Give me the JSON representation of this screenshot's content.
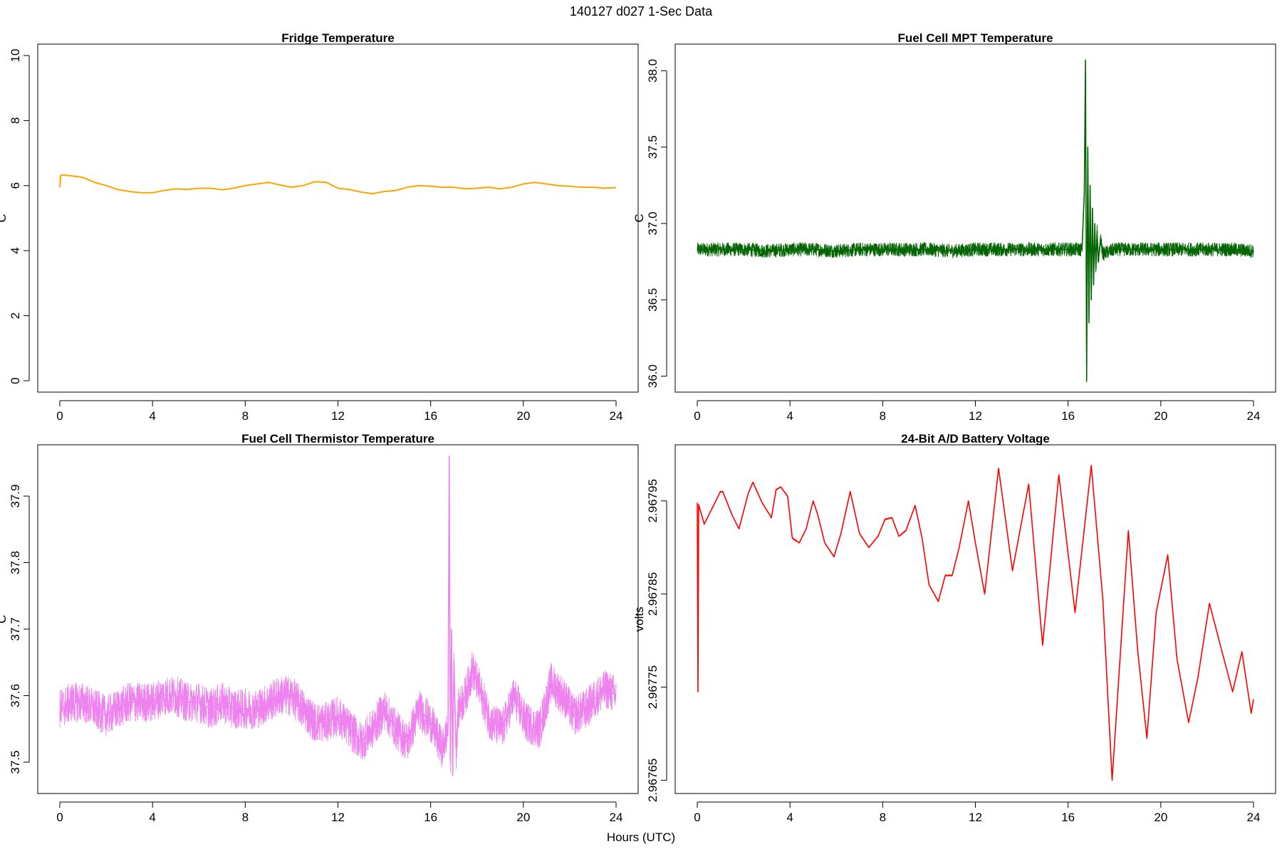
{
  "page_title": "140127   d027   1-Sec Data",
  "shared_xlabel": "Hours (UTC)",
  "chart_data": [
    {
      "type": "line",
      "title": "Fridge Temperature",
      "xlabel": "",
      "ylabel": "C",
      "color": "#FFA500",
      "xlim": [
        0,
        24
      ],
      "ylim": [
        0,
        10
      ],
      "xticks": [
        0,
        4,
        8,
        12,
        16,
        20,
        24
      ],
      "yticks": [
        0,
        2,
        4,
        6,
        8,
        10
      ],
      "ytick_labels": [
        "0",
        "2",
        "4",
        "6",
        "8",
        "10"
      ],
      "noise": 0.0,
      "series": [
        {
          "name": "Fridge Temperature",
          "x": [
            0,
            0.02,
            0.1,
            0.5,
            1,
            1.5,
            2,
            2.5,
            3,
            3.5,
            4,
            4.5,
            5,
            5.5,
            6,
            6.5,
            7,
            7.5,
            8,
            8.5,
            9,
            9.5,
            10,
            10.5,
            11,
            11.5,
            12,
            12.5,
            13,
            13.5,
            14,
            14.5,
            15,
            15.5,
            16,
            16.5,
            17,
            17.5,
            18,
            18.5,
            19,
            19.5,
            20,
            20.5,
            21,
            21.5,
            22,
            22.5,
            23,
            23.5,
            24
          ],
          "y": [
            5.95,
            6.3,
            6.33,
            6.3,
            6.25,
            6.1,
            6.0,
            5.88,
            5.82,
            5.78,
            5.78,
            5.85,
            5.9,
            5.88,
            5.92,
            5.92,
            5.87,
            5.92,
            6.0,
            6.05,
            6.1,
            6.02,
            5.95,
            6.0,
            6.12,
            6.1,
            5.92,
            5.88,
            5.8,
            5.75,
            5.82,
            5.85,
            5.95,
            6.0,
            5.98,
            5.95,
            5.95,
            5.9,
            5.92,
            5.95,
            5.9,
            5.95,
            6.05,
            6.1,
            6.05,
            6.0,
            5.98,
            5.95,
            5.95,
            5.92,
            5.94
          ]
        }
      ]
    },
    {
      "type": "line",
      "title": "Fuel Cell MPT Temperature",
      "xlabel": "",
      "ylabel": "C",
      "color": "#006400",
      "xlim": [
        0,
        24
      ],
      "ylim": [
        35.97,
        38.1
      ],
      "xticks": [
        0,
        4,
        8,
        12,
        16,
        20,
        24
      ],
      "yticks": [
        36.0,
        36.5,
        37.0,
        37.5,
        38.0
      ],
      "ytick_labels": [
        "36.0",
        "36.5",
        "37.0",
        "37.5",
        "38.0"
      ],
      "noise": 0.045,
      "series": [
        {
          "name": "Fuel Cell MPT Temperature",
          "x": [
            0,
            1,
            2,
            3,
            4,
            5,
            6,
            7,
            8,
            9,
            10,
            11,
            12,
            13,
            14,
            15,
            16,
            16.6,
            16.7,
            16.75,
            16.8,
            16.85,
            16.9,
            16.95,
            17.0,
            17.05,
            17.1,
            17.15,
            17.2,
            17.25,
            17.3,
            17.4,
            17.5,
            18,
            19,
            20,
            21,
            22,
            23,
            24
          ],
          "y": [
            36.83,
            36.83,
            36.83,
            36.82,
            36.83,
            36.83,
            36.82,
            36.83,
            36.83,
            36.83,
            36.83,
            36.82,
            36.83,
            36.83,
            36.83,
            36.83,
            36.83,
            36.83,
            37.2,
            38.07,
            35.97,
            37.5,
            36.35,
            37.25,
            36.5,
            37.1,
            36.6,
            37.0,
            36.7,
            36.95,
            36.75,
            36.9,
            36.8,
            36.83,
            36.83,
            36.83,
            36.83,
            36.83,
            36.83,
            36.82
          ]
        }
      ]
    },
    {
      "type": "line",
      "title": "Fuel Cell Thermistor Temperature",
      "xlabel": "",
      "ylabel": "C",
      "color": "#EE82EE",
      "xlim": [
        0,
        24
      ],
      "ylim": [
        37.47,
        37.96
      ],
      "xticks": [
        0,
        4,
        8,
        12,
        16,
        20,
        24
      ],
      "yticks": [
        37.5,
        37.6,
        37.7,
        37.8,
        37.9
      ],
      "ytick_labels": [
        "37.5",
        "37.6",
        "37.7",
        "37.8",
        "37.9"
      ],
      "noise": 0.03,
      "series": [
        {
          "name": "Fuel Cell Thermistor Temperature",
          "x": [
            0,
            0.5,
            1,
            1.5,
            2,
            2.5,
            3,
            3.5,
            4,
            4.5,
            5,
            5.5,
            6,
            6.5,
            7,
            7.5,
            8,
            8.5,
            9,
            9.5,
            10,
            10.5,
            11,
            11.5,
            12,
            12.5,
            13,
            13.5,
            14,
            14.5,
            15,
            15.5,
            16,
            16.5,
            16.75,
            16.8,
            16.85,
            16.9,
            16.95,
            17.0,
            17.1,
            17.2,
            17.5,
            17.8,
            18.2,
            18.6,
            19.1,
            19.6,
            20.1,
            20.7,
            21.2,
            21.7,
            22.2,
            22.7,
            23.2,
            23.6,
            24
          ],
          "y": [
            37.58,
            37.59,
            37.59,
            37.58,
            37.57,
            37.58,
            37.59,
            37.59,
            37.59,
            37.6,
            37.6,
            37.59,
            37.59,
            37.58,
            37.59,
            37.58,
            37.58,
            37.58,
            37.59,
            37.6,
            37.6,
            37.58,
            37.56,
            37.56,
            37.57,
            37.55,
            37.53,
            37.55,
            37.58,
            37.55,
            37.53,
            37.58,
            37.56,
            37.52,
            37.55,
            37.96,
            37.5,
            37.7,
            37.48,
            37.65,
            37.52,
            37.58,
            37.6,
            37.64,
            37.6,
            37.56,
            37.55,
            37.6,
            37.56,
            37.55,
            37.62,
            37.6,
            37.57,
            37.58,
            37.6,
            37.61,
            37.6
          ]
        }
      ]
    },
    {
      "type": "line",
      "title": "24-Bit A/D Battery Voltage",
      "xlabel": "",
      "ylabel": "volts",
      "color": "#FF0000",
      "xlim": [
        0,
        24
      ],
      "ylim": [
        2.967648,
        2.967998
      ],
      "xticks": [
        0,
        4,
        8,
        12,
        16,
        20,
        24
      ],
      "yticks": [
        2.96765,
        2.96775,
        2.96785,
        2.96795
      ],
      "ytick_labels": [
        "2.96765",
        "2.96775",
        "2.96785",
        "2.96795"
      ],
      "noise": 8e-07,
      "series": [
        {
          "name": "24-Bit A/D Battery Voltage",
          "x": [
            0,
            0.03,
            0.06,
            0.3,
            0.5,
            1,
            1.1,
            1.5,
            1.8,
            2.2,
            2.4,
            2.8,
            3.2,
            3.4,
            3.6,
            3.9,
            4.1,
            4.4,
            4.7,
            5.0,
            5.2,
            5.5,
            5.9,
            6.2,
            6.6,
            7.0,
            7.4,
            7.8,
            8.1,
            8.4,
            8.7,
            9.0,
            9.4,
            9.7,
            10.0,
            10.4,
            10.7,
            11.0,
            11.3,
            11.7,
            12.0,
            12.4,
            13.0,
            13.6,
            14.3,
            14.9,
            15.6,
            16.3,
            17.0,
            17.5,
            17.9,
            18.2,
            18.6,
            19.0,
            19.4,
            19.8,
            20.3,
            20.7,
            21.2,
            21.6,
            22.1,
            22.6,
            23.1,
            23.5,
            23.9,
            24
          ],
          "y": [
            2.967948,
            2.967745,
            2.967946,
            2.967925,
            2.967935,
            2.96796,
            2.96796,
            2.967935,
            2.96792,
            2.967958,
            2.96797,
            2.967948,
            2.967932,
            2.967962,
            2.967965,
            2.967955,
            2.96791,
            2.967905,
            2.96792,
            2.96795,
            2.967935,
            2.967905,
            2.96789,
            2.967915,
            2.96796,
            2.967915,
            2.9679,
            2.967912,
            2.96793,
            2.967932,
            2.967912,
            2.967918,
            2.967945,
            2.96791,
            2.96786,
            2.967842,
            2.96787,
            2.96787,
            2.9679,
            2.96795,
            2.967905,
            2.96785,
            2.967985,
            2.967875,
            2.967968,
            2.967795,
            2.967978,
            2.96783,
            2.967988,
            2.967844,
            2.96765,
            2.967765,
            2.967918,
            2.96779,
            2.967695,
            2.96783,
            2.967892,
            2.96778,
            2.967712,
            2.96776,
            2.96784,
            2.967792,
            2.967745,
            2.967788,
            2.967722,
            2.967737
          ]
        }
      ]
    }
  ]
}
